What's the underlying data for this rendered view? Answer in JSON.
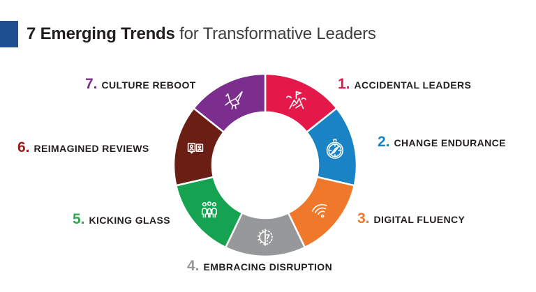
{
  "header": {
    "accent_color": "#1D4F91",
    "title_bold": "7 Emerging Trends",
    "title_rest": " for Transformative Leaders"
  },
  "chart_data": {
    "type": "pie",
    "variant": "donut-wheel",
    "title": "7 Emerging Trends for Transformative Leaders",
    "direction": "clockwise",
    "start_angle_deg": 0,
    "label_text_color": "#231F20",
    "segments": [
      {
        "number": "1.",
        "label": "ACCIDENTAL LEADERS",
        "value": 1,
        "color": "#E4194A",
        "number_color": "#E4194A",
        "icon": "flag-summit-icon"
      },
      {
        "number": "2.",
        "label": "CHANGE ENDURANCE",
        "value": 1,
        "color": "#1983C5",
        "number_color": "#1983C5",
        "icon": "compass-icon"
      },
      {
        "number": "3.",
        "label": "DIGITAL FLUENCY",
        "value": 1,
        "color": "#F0782A",
        "number_color": "#F0782A",
        "icon": "wifi-icon"
      },
      {
        "number": "4.",
        "label": "EMBRACING DISRUPTION",
        "value": 1,
        "color": "#97989A",
        "number_color": "#97989A",
        "icon": "gear-head-icon"
      },
      {
        "number": "5.",
        "label": "KICKING GLASS",
        "value": 1,
        "color": "#16A351",
        "number_color": "#2FA84F",
        "icon": "team-icon"
      },
      {
        "number": "6.",
        "label": "REIMAGINED REVIEWS",
        "value": 1,
        "color": "#6B1E14",
        "number_color": "#9B1D1B",
        "icon": "review-profiles-icon"
      },
      {
        "number": "7.",
        "label": "CULTURE REBOOT",
        "value": 1,
        "color": "#7B2E8D",
        "number_color": "#7B2E8D",
        "icon": "origami-crane-icon"
      }
    ]
  }
}
